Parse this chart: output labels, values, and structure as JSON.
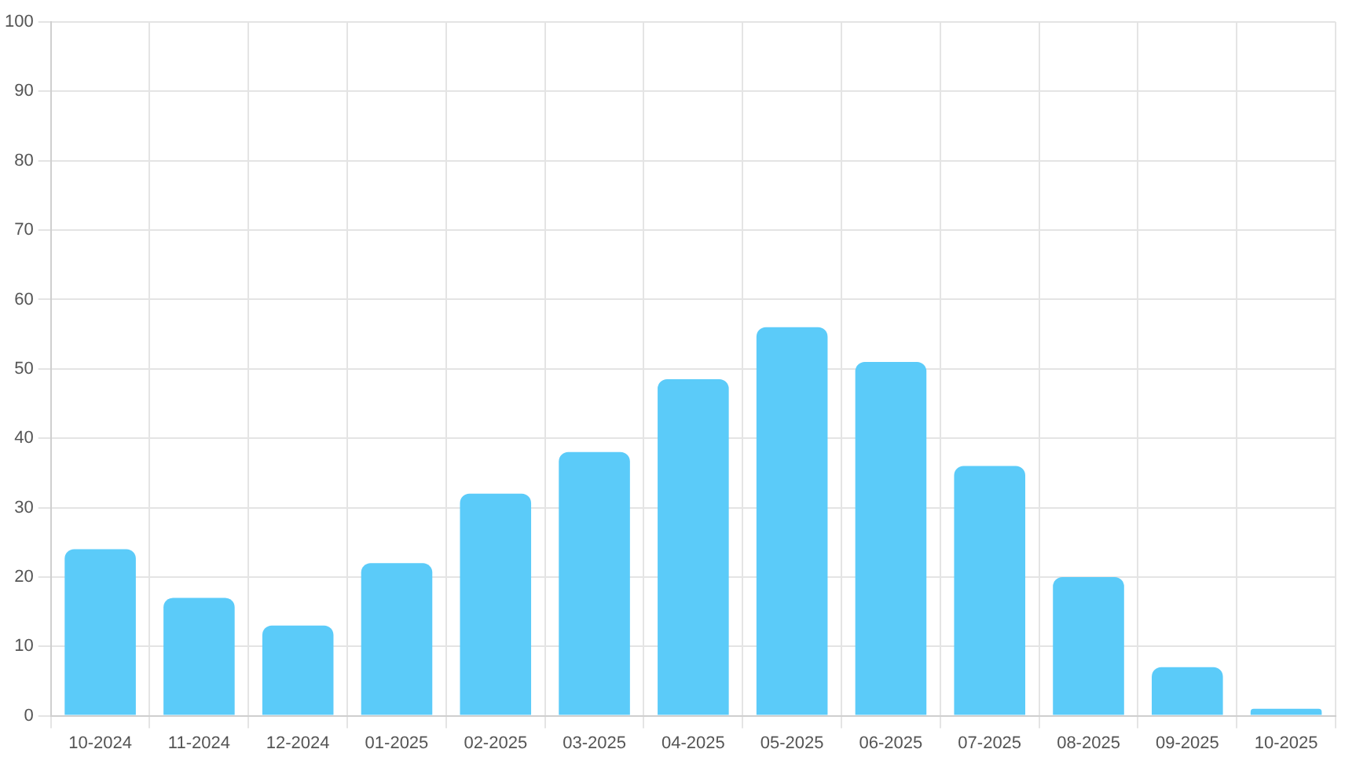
{
  "chart_data": {
    "type": "bar",
    "categories": [
      "10-2024",
      "11-2024",
      "12-2024",
      "01-2025",
      "02-2025",
      "03-2025",
      "04-2025",
      "05-2025",
      "06-2025",
      "07-2025",
      "08-2025",
      "09-2025",
      "10-2025"
    ],
    "values": [
      24,
      17,
      13,
      22,
      32,
      38,
      48.5,
      56,
      51,
      36,
      20,
      7,
      1
    ],
    "color": "#5bcbf9",
    "ylim": [
      0,
      100
    ],
    "yticks": [
      0,
      10,
      20,
      30,
      40,
      50,
      60,
      70,
      80,
      90,
      100
    ],
    "grid": true,
    "legend": false
  }
}
